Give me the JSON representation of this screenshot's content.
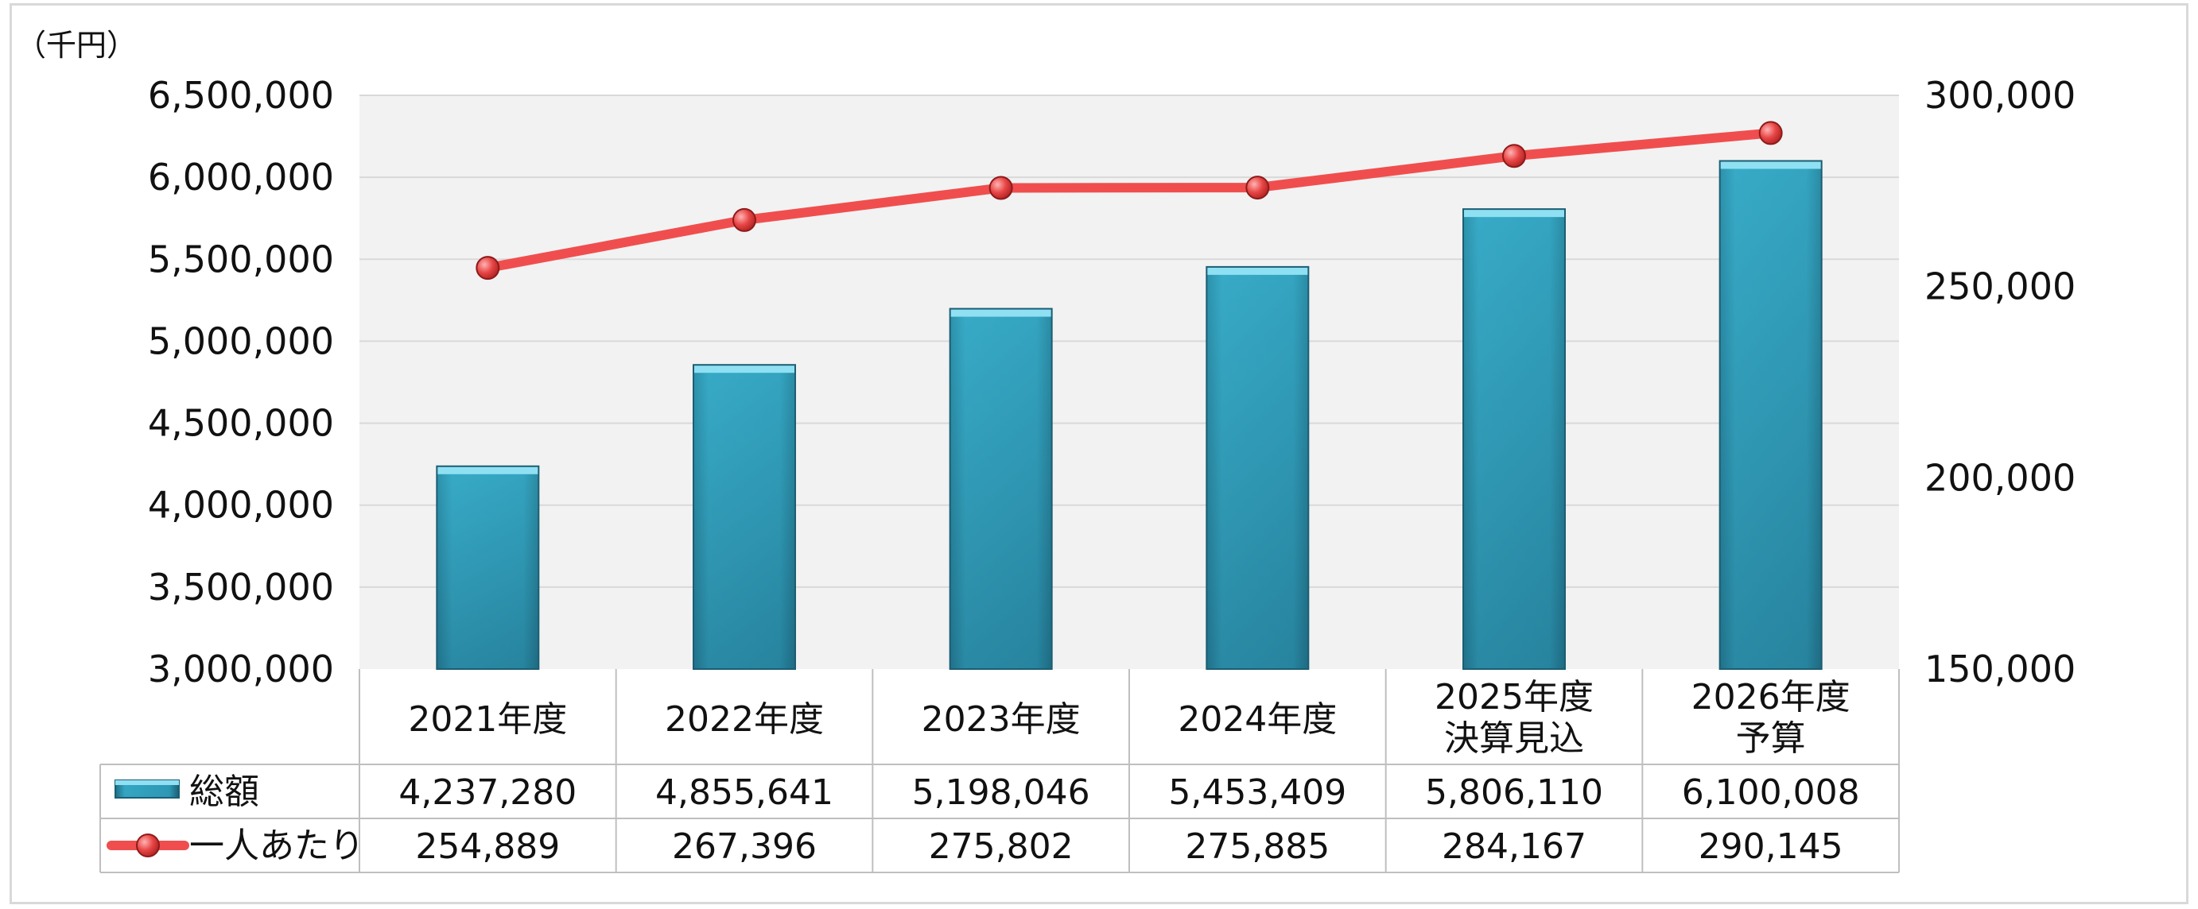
{
  "chart_data": {
    "type": "bar",
    "unit_label": "（千円）",
    "categories": [
      "2021年度",
      "2022年度",
      "2023年度",
      "2024年度",
      "2025年度\n決算見込",
      "2026年度\n予算"
    ],
    "series": [
      {
        "name": "総額",
        "type": "bar",
        "axis": "left",
        "color": "#2E9AB8",
        "values": [
          4237280,
          4855641,
          5198046,
          5453409,
          5806110,
          6100008
        ]
      },
      {
        "name": "一人あたり",
        "type": "line",
        "axis": "right",
        "color": "#F04E4E",
        "values": [
          254889,
          267396,
          275802,
          275885,
          284167,
          290145
        ]
      }
    ],
    "y_left": {
      "min": 3000000,
      "max": 6500000,
      "step": 500000,
      "tick_labels": [
        "3,000,000",
        "3,500,000",
        "4,000,000",
        "4,500,000",
        "5,000,000",
        "5,500,000",
        "6,000,000",
        "6,500,000"
      ]
    },
    "y_right": {
      "min": 150000,
      "max": 300000,
      "step": 50000,
      "tick_labels": [
        "150,000",
        "200,000",
        "250,000",
        "300,000"
      ]
    },
    "table": {
      "rows": [
        {
          "label": "総額",
          "cells": [
            "4,237,280",
            "4,855,641",
            "5,198,046",
            "5,453,409",
            "5,806,110",
            "6,100,008"
          ]
        },
        {
          "label": "一人あたり",
          "cells": [
            "254,889",
            "267,396",
            "275,802",
            "275,885",
            "284,167",
            "290,145"
          ]
        }
      ]
    },
    "grid": true
  }
}
